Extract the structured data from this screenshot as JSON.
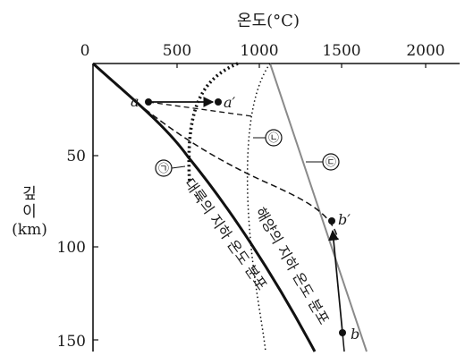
{
  "x_axis": {
    "title": "온도(°C)",
    "ticks": [
      "0",
      "500",
      "1000",
      "1500",
      "2000"
    ]
  },
  "y_axis": {
    "title_lines": [
      "깊",
      "이",
      "(km)"
    ],
    "ticks": [
      "50",
      "100",
      "150"
    ]
  },
  "curve_labels": {
    "continental": "대륙의 지하 온도 분포",
    "oceanic": "해양의 지하 온도 분포"
  },
  "line_markers": [
    "㉠",
    "㉡",
    "㉢"
  ],
  "points": {
    "a": "a",
    "a_prime": "a′",
    "b": "b",
    "b_prime": "b′"
  }
}
